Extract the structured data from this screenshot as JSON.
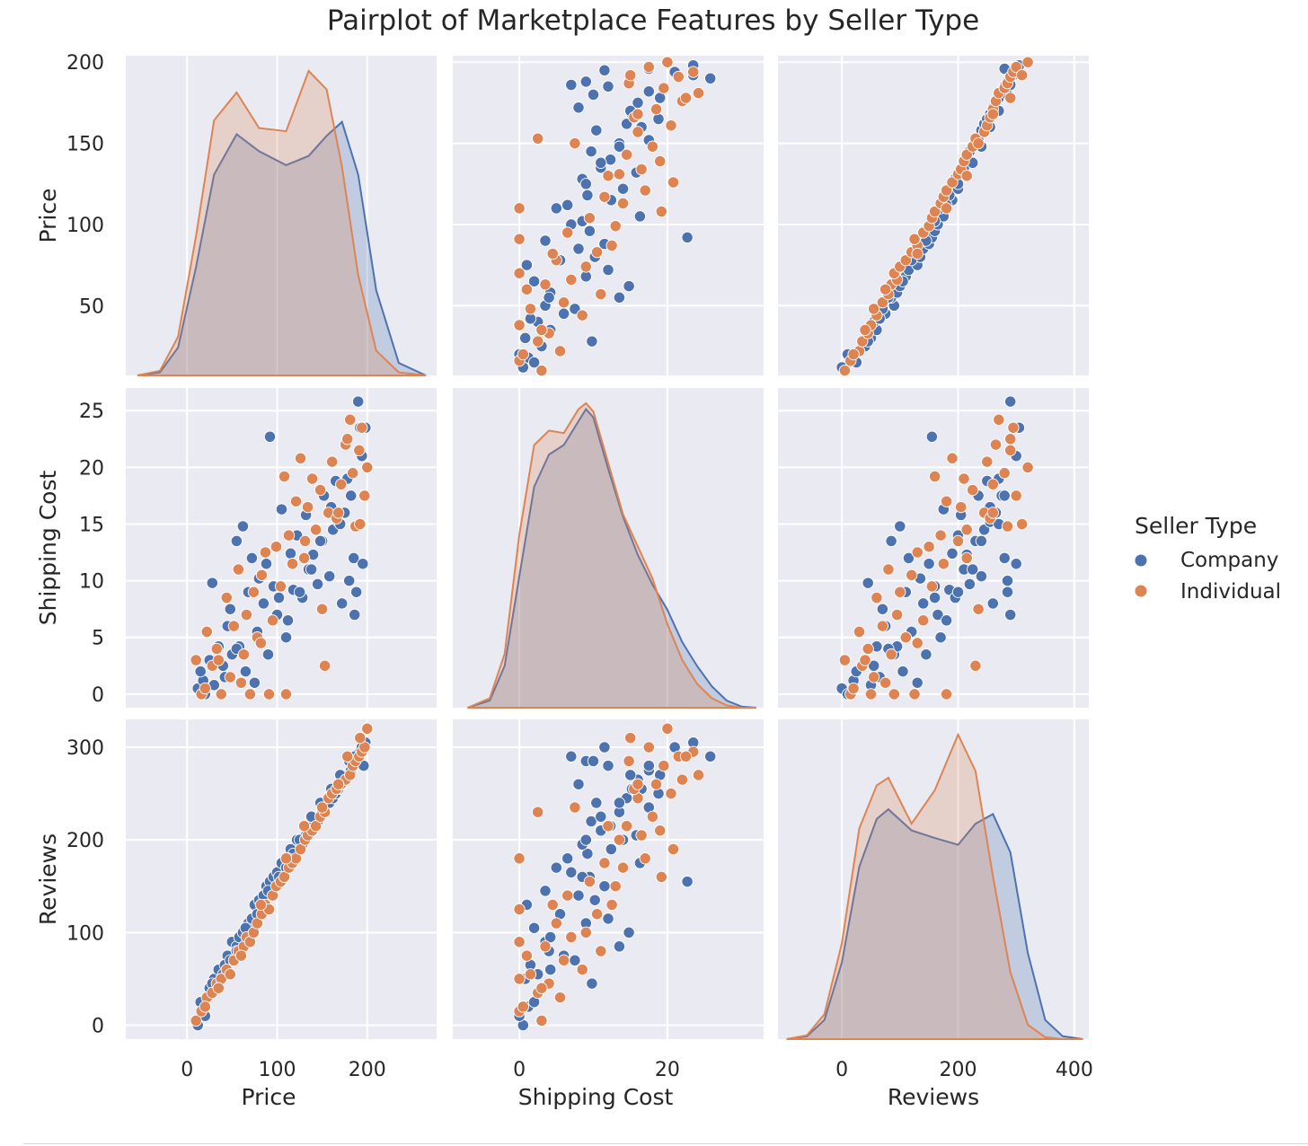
{
  "title": "Pairplot of Marketplace Features by Seller Type",
  "legend": {
    "title": "Seller Type",
    "entries": [
      {
        "label": "Company",
        "color": "#4c72b0"
      },
      {
        "label": "Individual",
        "color": "#dd8452"
      }
    ]
  },
  "chart_data": {
    "type": "scatter",
    "variables": [
      "Price",
      "Shipping Cost",
      "Reviews"
    ],
    "hue": "Seller Type",
    "axis_labels": {
      "x": [
        "Price",
        "Shipping Cost",
        "Reviews"
      ],
      "y": [
        "Price",
        "Shipping Cost",
        "Reviews"
      ]
    },
    "x_ranges": {
      "Price": [
        -68,
        277
      ],
      "Shipping Cost": [
        -9,
        33
      ],
      "Reviews": [
        -110,
        425
      ]
    },
    "y_ranges": {
      "Price": [
        7,
        204
      ],
      "Shipping Cost": [
        -1.2,
        27
      ],
      "Reviews": [
        -15,
        330
      ]
    },
    "x_ticks": {
      "Price": [
        0,
        100,
        200
      ],
      "Shipping Cost": [
        0,
        20
      ],
      "Reviews": [
        0,
        200,
        400
      ]
    },
    "y_ticks": {
      "Price": [
        50,
        100,
        150,
        200
      ],
      "Shipping Cost": [
        0,
        5,
        10,
        15,
        20,
        25
      ],
      "Reviews": [
        0,
        100,
        200,
        300
      ]
    },
    "grid": true,
    "legend_position": "center-right",
    "diagonal": "kde",
    "series": [
      {
        "name": "Company",
        "color": "#4c72b0",
        "price": [
          12,
          18,
          25,
          30,
          35,
          40,
          45,
          50,
          55,
          58,
          62,
          68,
          72,
          75,
          80,
          85,
          88,
          92,
          96,
          100,
          105,
          110,
          115,
          118,
          122,
          128,
          132,
          135,
          140,
          145,
          150,
          152,
          158,
          162,
          165,
          168,
          172,
          175,
          178,
          182,
          185,
          188,
          190,
          192,
          195,
          196,
          15,
          20,
          28,
          42,
          48,
          55,
          65,
          78,
          90,
          102,
          112,
          125,
          138,
          148,
          160,
          170,
          180,
          186,
          194,
          198
        ],
        "shipping_cost": [
          0.5,
          1.2,
          3.0,
          0.8,
          4.2,
          2.5,
          6.0,
          3.5,
          13.5,
          4.2,
          14.8,
          9.0,
          12.0,
          1.0,
          10.2,
          8.0,
          11.5,
          22.7,
          9.5,
          7.0,
          16.3,
          5.0,
          12.4,
          9.2,
          14.0,
          8.5,
          15.8,
          11.0,
          12.3,
          9.7,
          13.5,
          17.5,
          10.4,
          14.5,
          18.8,
          15.2,
          8.0,
          16.0,
          19.0,
          17.5,
          12.0,
          9.0,
          25.8,
          23.5,
          11.5,
          17.5,
          2.0,
          0.0,
          9.8,
          1.5,
          7.5,
          4.0,
          2.0,
          5.5,
          3.5,
          8.5,
          6.5,
          9.0,
          11.0,
          13.5,
          16.5,
          15.0,
          10.0,
          7.0,
          21.0,
          23.5
        ],
        "reviews": [
          0,
          20,
          40,
          50,
          60,
          55,
          75,
          90,
          85,
          95,
          100,
          110,
          115,
          130,
          135,
          140,
          150,
          155,
          160,
          165,
          175,
          170,
          190,
          185,
          200,
          195,
          205,
          210,
          215,
          220,
          230,
          235,
          240,
          245,
          250,
          255,
          260,
          265,
          270,
          275,
          280,
          285,
          290,
          295,
          300,
          280,
          25,
          10,
          45,
          65,
          70,
          80,
          105,
          120,
          145,
          160,
          180,
          200,
          225,
          240,
          255,
          270,
          285,
          290,
          300,
          305
        ]
      },
      {
        "name": "Individual",
        "color": "#dd8452",
        "price": [
          10,
          16,
          22,
          28,
          33,
          38,
          44,
          48,
          52,
          57,
          63,
          66,
          70,
          74,
          78,
          83,
          87,
          91,
          95,
          99,
          104,
          108,
          113,
          117,
          121,
          126,
          131,
          134,
          139,
          143,
          148,
          153,
          157,
          161,
          166,
          171,
          176,
          181,
          184,
          187,
          191,
          194,
          197,
          200,
          20,
          35,
          60,
          82,
          110,
          130,
          150,
          168,
          178,
          192
        ],
        "shipping_cost": [
          3.0,
          0.0,
          5.5,
          2.5,
          4.0,
          0.0,
          8.5,
          1.5,
          6.0,
          11.0,
          3.5,
          7.0,
          0.0,
          9.0,
          5.0,
          10.5,
          12.5,
          0.0,
          6.5,
          13.0,
          9.5,
          19.2,
          14.0,
          11.5,
          17.0,
          20.8,
          13.5,
          16.5,
          19.0,
          14.5,
          18.0,
          2.5,
          16.0,
          20.5,
          15.5,
          18.5,
          22.0,
          24.2,
          19.5,
          14.8,
          21.5,
          23.5,
          17.5,
          20.0,
          0.5,
          3.0,
          1.0,
          4.5,
          0.0,
          12.0,
          7.5,
          16.0,
          22.5,
          15.0
        ],
        "reviews": [
          5,
          15,
          30,
          35,
          45,
          50,
          60,
          55,
          70,
          80,
          85,
          95,
          90,
          100,
          110,
          120,
          130,
          125,
          140,
          150,
          155,
          160,
          170,
          175,
          180,
          190,
          200,
          205,
          210,
          215,
          225,
          230,
          245,
          250,
          255,
          260,
          265,
          270,
          280,
          285,
          290,
          295,
          300,
          320,
          20,
          40,
          75,
          130,
          180,
          215,
          235,
          260,
          290,
          310
        ]
      }
    ],
    "kde": {
      "Price": {
        "x": [
          -55,
          -30,
          -10,
          10,
          30,
          55,
          80,
          110,
          135,
          155,
          172,
          190,
          210,
          235,
          265
        ],
        "Company": [
          0.0,
          0.2,
          1.8,
          7.0,
          13.0,
          15.6,
          14.5,
          13.6,
          14.2,
          15.5,
          16.4,
          13.0,
          5.5,
          0.8,
          0.0
        ],
        "Individual": [
          0.0,
          0.3,
          2.5,
          9.0,
          16.5,
          18.3,
          16.0,
          15.8,
          19.7,
          18.5,
          13.5,
          6.5,
          1.6,
          0.2,
          0.0
        ]
      },
      "Shipping Cost": {
        "x": [
          -7,
          -4,
          -2,
          0,
          2,
          4,
          6,
          8,
          9,
          10,
          12,
          14,
          16,
          18,
          20,
          22,
          24,
          26,
          28,
          30,
          32
        ],
        "Company": [
          0.0,
          0.6,
          3.5,
          11.0,
          18.5,
          21.2,
          22.0,
          24.0,
          25.0,
          24.3,
          20.0,
          16.0,
          12.8,
          10.3,
          8.2,
          5.5,
          3.5,
          1.8,
          0.6,
          0.1,
          0.0
        ],
        "Individual": [
          0.0,
          0.8,
          4.5,
          14.5,
          22.0,
          23.2,
          23.0,
          25.0,
          25.5,
          24.8,
          20.5,
          16.2,
          13.5,
          10.8,
          7.0,
          4.0,
          2.0,
          0.8,
          0.2,
          0.0,
          0.0
        ]
      },
      "Reviews": {
        "x": [
          -95,
          -60,
          -30,
          0,
          30,
          60,
          80,
          120,
          160,
          200,
          230,
          260,
          290,
          320,
          350,
          380,
          415
        ],
        "Company": [
          0.0,
          0.3,
          2.0,
          8.0,
          18.0,
          23.0,
          24.0,
          21.8,
          21.0,
          20.3,
          22.5,
          23.5,
          19.5,
          9.0,
          2.0,
          0.3,
          0.0
        ],
        "Individual": [
          0.0,
          0.4,
          2.6,
          10.0,
          22.0,
          26.5,
          27.3,
          22.5,
          26.0,
          31.8,
          28.0,
          17.0,
          7.0,
          1.5,
          0.2,
          0.0,
          0.0
        ]
      }
    }
  }
}
